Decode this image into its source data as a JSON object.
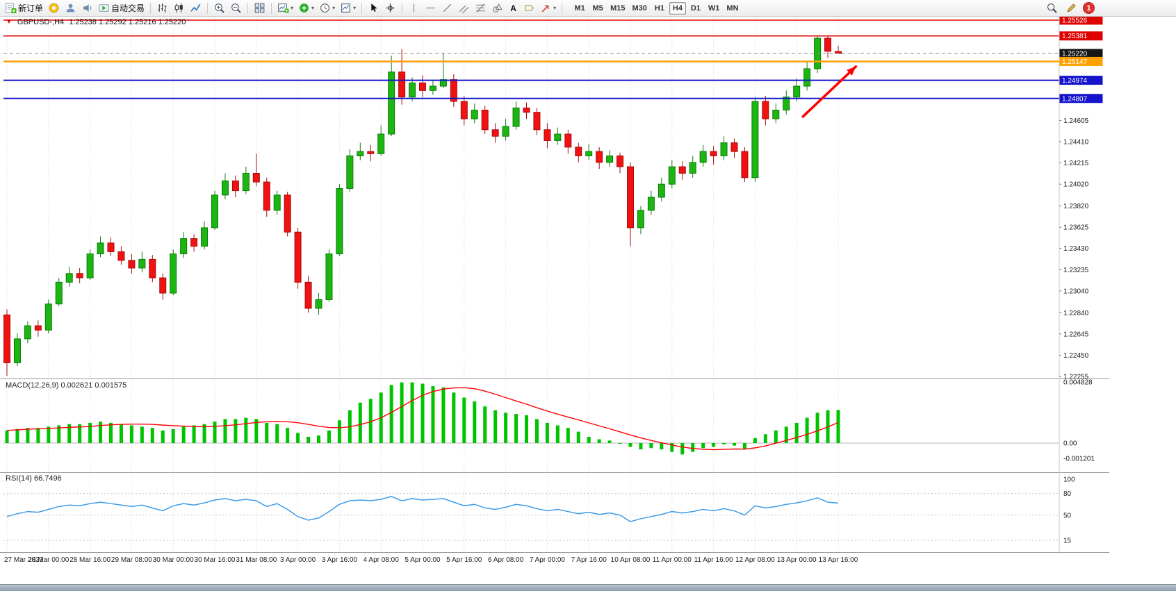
{
  "toolbar": {
    "new_order_label": "新订单",
    "autotrading_label": "自动交易",
    "timeframes": [
      "M1",
      "M5",
      "M15",
      "M30",
      "H1",
      "H4",
      "D1",
      "W1",
      "MN"
    ],
    "active_timeframe": "H4",
    "notification_count": "1"
  },
  "icons": {
    "one_click_arrow": "▼",
    "dropdown_caret": "▾",
    "text_tool_glyph": "A"
  },
  "chart": {
    "title": "GBPUSD-,H4",
    "quote": "1.25238 1.25292 1.25216 1.25220"
  },
  "indicators": {
    "macd_name": "MACD(12,26,9)",
    "macd_values": "0.002621 0.001575",
    "rsi_name": "RSI(14)",
    "rsi_value": "66.7496"
  },
  "chart_data": [
    {
      "type": "candlestick",
      "symbol": "GBPUSD-",
      "period": "H4",
      "bars_per_label": 4,
      "time_labels": [
        "27 Mar 2023",
        "28 Mar 00:00",
        "28 Mar 16:00",
        "29 Mar 08:00",
        "30 Mar 00:00",
        "30 Mar 16:00",
        "31 Mar 08:00",
        "3 Apr 00:00",
        "3 Apr 16:00",
        "4 Apr 08:00",
        "5 Apr 00:00",
        "5 Apr 16:00",
        "6 Apr 08:00",
        "7 Apr 00:00",
        "7 Apr 16:00",
        "10 Apr 08:00",
        "11 Apr 00:00",
        "11 Apr 16:00",
        "12 Apr 08:00",
        "13 Apr 00:00",
        "13 Apr 16:00"
      ],
      "y_range": [
        "1.25526",
        "1.22255"
      ],
      "y_ticks": [
        "1.24605",
        "1.24410",
        "1.24215",
        "1.24020",
        "1.23820",
        "1.23625",
        "1.23430",
        "1.23235",
        "1.23040",
        "1.22840",
        "1.22645",
        "1.22450",
        "1.22255"
      ],
      "up_color": "#1DB512",
      "up_edge": "#0B7D08",
      "down_color": "#F01212",
      "down_edge": "#A80A0A",
      "price_lines": [
        {
          "label": "1.25526",
          "price": 1.25526,
          "color": "#DF0000",
          "style": "solid",
          "width": 1.5
        },
        {
          "label": "1.25381",
          "price": 1.25381,
          "color": "#DF0000",
          "style": "solid",
          "width": 1.5
        },
        {
          "label": "1.25220",
          "price": 1.2522,
          "color": "#8a8a8a",
          "style": "dash",
          "width": 1,
          "badge": "#151515",
          "current": true
        },
        {
          "label": "1.25147",
          "price": 1.25147,
          "color": "#FFA000",
          "style": "solid",
          "width": 2.5
        },
        {
          "label": "1.24974",
          "price": 1.24974,
          "color": "#1414CC",
          "style": "solid",
          "width": 2
        },
        {
          "label": "1.24807",
          "price": 1.24807,
          "color": "#1414CC",
          "style": "solid",
          "width": 2
        }
      ],
      "arrow": {
        "from_bar": 76.6,
        "from_price": 1.2464,
        "to_bar": 81.7,
        "to_price": 1.251,
        "color": "#FF0000"
      },
      "candles": [
        [
          1.2282,
          1.2287,
          1.2226,
          1.2238
        ],
        [
          1.2238,
          1.2265,
          1.2235,
          1.226
        ],
        [
          1.226,
          1.2276,
          1.2256,
          1.2272
        ],
        [
          1.2272,
          1.2277,
          1.2262,
          1.2268
        ],
        [
          1.2268,
          1.2296,
          1.2265,
          1.2292
        ],
        [
          1.2292,
          1.2316,
          1.229,
          1.2312
        ],
        [
          1.2312,
          1.2326,
          1.2308,
          1.232
        ],
        [
          1.232,
          1.2325,
          1.2311,
          1.2316
        ],
        [
          1.2316,
          1.2342,
          1.2314,
          1.2338
        ],
        [
          1.2338,
          1.2354,
          1.2335,
          1.2348
        ],
        [
          1.2348,
          1.2353,
          1.2336,
          1.234
        ],
        [
          1.234,
          1.2345,
          1.2328,
          1.2332
        ],
        [
          1.2332,
          1.2338,
          1.232,
          1.2325
        ],
        [
          1.2325,
          1.234,
          1.2321,
          1.2333
        ],
        [
          1.2333,
          1.2337,
          1.2312,
          1.2316
        ],
        [
          1.2316,
          1.232,
          1.2296,
          1.2302
        ],
        [
          1.2302,
          1.2342,
          1.23,
          1.2338
        ],
        [
          1.2338,
          1.2358,
          1.2334,
          1.2352
        ],
        [
          1.2352,
          1.2356,
          1.234,
          1.2345
        ],
        [
          1.2345,
          1.2368,
          1.2342,
          1.2362
        ],
        [
          1.2362,
          1.2396,
          1.236,
          1.2392
        ],
        [
          1.2392,
          1.2412,
          1.2388,
          1.2405
        ],
        [
          1.2405,
          1.241,
          1.239,
          1.2396
        ],
        [
          1.2396,
          1.2418,
          1.2393,
          1.2412
        ],
        [
          1.2412,
          1.243,
          1.24,
          1.2404
        ],
        [
          1.2404,
          1.2408,
          1.2372,
          1.2378
        ],
        [
          1.2378,
          1.2396,
          1.2374,
          1.2392
        ],
        [
          1.2392,
          1.2395,
          1.2354,
          1.2358
        ],
        [
          1.2358,
          1.2362,
          1.2306,
          1.2312
        ],
        [
          1.2312,
          1.2318,
          1.2284,
          1.2288
        ],
        [
          1.2288,
          1.2302,
          1.2282,
          1.2296
        ],
        [
          1.2296,
          1.2342,
          1.2294,
          1.2338
        ],
        [
          1.2338,
          1.2402,
          1.2336,
          1.2398
        ],
        [
          1.2398,
          1.2434,
          1.2395,
          1.2428
        ],
        [
          1.2428,
          1.244,
          1.2424,
          1.2432
        ],
        [
          1.2432,
          1.2438,
          1.2423,
          1.243
        ],
        [
          1.243,
          1.2456,
          1.2428,
          1.2448
        ],
        [
          1.2448,
          1.252,
          1.2446,
          1.2505
        ],
        [
          1.2505,
          1.2526,
          1.2475,
          1.2482
        ],
        [
          1.2482,
          1.25,
          1.2478,
          1.2495
        ],
        [
          1.2495,
          1.2502,
          1.2482,
          1.2488
        ],
        [
          1.2488,
          1.2498,
          1.2484,
          1.2492
        ],
        [
          1.2492,
          1.2522,
          1.249,
          1.2498
        ],
        [
          1.2498,
          1.2503,
          1.2473,
          1.2478
        ],
        [
          1.2478,
          1.2483,
          1.2456,
          1.2462
        ],
        [
          1.2462,
          1.2476,
          1.2458,
          1.247
        ],
        [
          1.247,
          1.2474,
          1.2448,
          1.2452
        ],
        [
          1.2452,
          1.2458,
          1.244,
          1.2446
        ],
        [
          1.2446,
          1.2462,
          1.2442,
          1.2455
        ],
        [
          1.2455,
          1.2478,
          1.2452,
          1.2472
        ],
        [
          1.2472,
          1.2477,
          1.2462,
          1.2468
        ],
        [
          1.2468,
          1.2472,
          1.2447,
          1.2452
        ],
        [
          1.2452,
          1.2458,
          1.2435,
          1.2442
        ],
        [
          1.2442,
          1.2454,
          1.2438,
          1.2448
        ],
        [
          1.2448,
          1.2452,
          1.243,
          1.2436
        ],
        [
          1.2436,
          1.244,
          1.2422,
          1.2428
        ],
        [
          1.2428,
          1.2439,
          1.2424,
          1.2432
        ],
        [
          1.2432,
          1.2436,
          1.2416,
          1.2422
        ],
        [
          1.2422,
          1.2433,
          1.2418,
          1.2428
        ],
        [
          1.2428,
          1.2431,
          1.2412,
          1.2418
        ],
        [
          1.2418,
          1.2422,
          1.2345,
          1.2362
        ],
        [
          1.2362,
          1.2382,
          1.2356,
          1.2378
        ],
        [
          1.2378,
          1.2396,
          1.2374,
          1.239
        ],
        [
          1.239,
          1.2408,
          1.2386,
          1.2402
        ],
        [
          1.2402,
          1.2424,
          1.2398,
          1.2418
        ],
        [
          1.2418,
          1.2423,
          1.2406,
          1.2412
        ],
        [
          1.2412,
          1.2428,
          1.2408,
          1.2422
        ],
        [
          1.2422,
          1.2438,
          1.2418,
          1.2432
        ],
        [
          1.2432,
          1.2437,
          1.242,
          1.2428
        ],
        [
          1.2428,
          1.2446,
          1.2424,
          1.244
        ],
        [
          1.244,
          1.2444,
          1.2426,
          1.2432
        ],
        [
          1.2432,
          1.2436,
          1.2404,
          1.2408
        ],
        [
          1.2408,
          1.2482,
          1.2404,
          1.2478
        ],
        [
          1.2478,
          1.2483,
          1.2456,
          1.2462
        ],
        [
          1.2462,
          1.2476,
          1.2458,
          1.247
        ],
        [
          1.247,
          1.2488,
          1.2466,
          1.2482
        ],
        [
          1.2482,
          1.2499,
          1.2478,
          1.2492
        ],
        [
          1.2492,
          1.2514,
          1.2488,
          1.2508
        ],
        [
          1.2508,
          1.2538,
          1.2504,
          1.2536
        ],
        [
          1.2536,
          1.25381,
          1.2518,
          1.2524
        ],
        [
          1.25238,
          1.25292,
          1.25216,
          1.2522
        ]
      ]
    },
    {
      "type": "bar",
      "name": "MACD",
      "params": "12,26,9",
      "histogram_color": "#00C400",
      "signal_color": "#FF0000",
      "signal_period": 9,
      "y_ticks": [
        "0.004828",
        "0.00",
        "-0.001201"
      ],
      "values": [
        0.001,
        0.0011,
        0.0012,
        0.0012,
        0.0013,
        0.0014,
        0.0015,
        0.0015,
        0.0016,
        0.0017,
        0.0016,
        0.0015,
        0.0014,
        0.0013,
        0.0012,
        0.001,
        0.0011,
        0.0013,
        0.0014,
        0.0015,
        0.0017,
        0.0019,
        0.0019,
        0.002,
        0.0019,
        0.0016,
        0.0015,
        0.0012,
        0.0008,
        0.0005,
        0.0006,
        0.001,
        0.0018,
        0.0026,
        0.0032,
        0.0035,
        0.004,
        0.0046,
        0.0048,
        0.0048,
        0.0047,
        0.0045,
        0.0044,
        0.004,
        0.0036,
        0.0033,
        0.0029,
        0.0026,
        0.0024,
        0.0023,
        0.0022,
        0.0019,
        0.0016,
        0.0014,
        0.0012,
        0.0009,
        0.0005,
        0.0003,
        0.0002,
        0.0,
        -0.0003,
        -0.0005,
        -0.0004,
        -0.0005,
        -0.0007,
        -0.0009,
        -0.0007,
        -0.0004,
        -0.0003,
        -0.0001,
        -0.0002,
        -0.0005,
        0.0004,
        0.0007,
        0.001,
        0.0013,
        0.0016,
        0.002,
        0.0024,
        0.0026,
        0.002621
      ]
    },
    {
      "type": "line",
      "name": "RSI",
      "period": 14,
      "color": "#3D9BE9",
      "levels": [
        80,
        50,
        15
      ],
      "y_ticks": [
        "100",
        "80",
        "50",
        "15"
      ],
      "range": [
        0,
        100
      ],
      "values": [
        48,
        52,
        55,
        54,
        58,
        62,
        64,
        63,
        66,
        68,
        66,
        64,
        62,
        64,
        60,
        56,
        63,
        66,
        64,
        67,
        71,
        73,
        70,
        72,
        70,
        62,
        66,
        58,
        48,
        43,
        46,
        55,
        65,
        70,
        71,
        70,
        72,
        76,
        70,
        73,
        71,
        72,
        73,
        68,
        63,
        65,
        60,
        58,
        61,
        65,
        63,
        59,
        56,
        58,
        55,
        52,
        54,
        51,
        53,
        50,
        41,
        45,
        48,
        51,
        55,
        53,
        55,
        58,
        56,
        59,
        56,
        50,
        63,
        60,
        62,
        65,
        67,
        70,
        74,
        68,
        66.7496
      ]
    }
  ]
}
